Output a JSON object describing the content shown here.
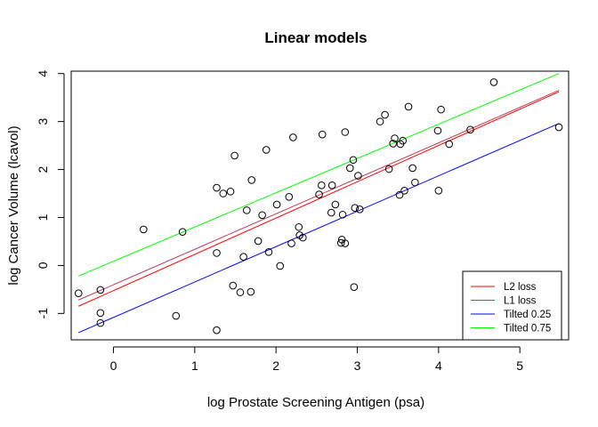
{
  "chart_data": {
    "type": "scatter",
    "title": "Linear models",
    "xlabel": "log Prostate Screening Antigen (psa)",
    "ylabel": "log Cancer Volume (lcavol)",
    "xlim": [
      -0.52,
      5.6
    ],
    "ylim": [
      -1.55,
      4.05
    ],
    "xticks": [
      0,
      1,
      2,
      3,
      4,
      5
    ],
    "yticks": [
      -1,
      0,
      1,
      2,
      3,
      4
    ],
    "xtick_labels": [
      "0",
      "1",
      "2",
      "3",
      "4",
      "5"
    ],
    "ytick_labels": [
      "-1",
      "0",
      "1",
      "2",
      "3",
      "4"
    ],
    "legend_position": "bottom-right",
    "points": [
      {
        "x": -0.43,
        "y": -0.58
      },
      {
        "x": -0.16,
        "y": -0.99
      },
      {
        "x": -0.16,
        "y": -0.51
      },
      {
        "x": -0.16,
        "y": -1.2
      },
      {
        "x": 0.37,
        "y": 0.75
      },
      {
        "x": 0.77,
        "y": -1.05
      },
      {
        "x": 0.85,
        "y": 0.7
      },
      {
        "x": 1.27,
        "y": 1.62
      },
      {
        "x": 1.27,
        "y": 0.26
      },
      {
        "x": 1.27,
        "y": -1.35
      },
      {
        "x": 1.35,
        "y": 1.5
      },
      {
        "x": 1.44,
        "y": 1.54
      },
      {
        "x": 1.47,
        "y": -0.42
      },
      {
        "x": 1.49,
        "y": 2.29
      },
      {
        "x": 1.56,
        "y": -0.56
      },
      {
        "x": 1.6,
        "y": 0.18
      },
      {
        "x": 1.64,
        "y": 1.15
      },
      {
        "x": 1.69,
        "y": -0.55
      },
      {
        "x": 1.7,
        "y": 1.78
      },
      {
        "x": 1.78,
        "y": 0.51
      },
      {
        "x": 1.83,
        "y": 1.05
      },
      {
        "x": 1.88,
        "y": 2.41
      },
      {
        "x": 1.91,
        "y": 0.28
      },
      {
        "x": 2.01,
        "y": 1.27
      },
      {
        "x": 2.05,
        "y": -0.01
      },
      {
        "x": 2.16,
        "y": 1.43
      },
      {
        "x": 2.19,
        "y": 0.46
      },
      {
        "x": 2.21,
        "y": 2.67
      },
      {
        "x": 2.28,
        "y": 0.8
      },
      {
        "x": 2.29,
        "y": 0.63
      },
      {
        "x": 2.33,
        "y": 0.58
      },
      {
        "x": 2.53,
        "y": 1.48
      },
      {
        "x": 2.56,
        "y": 1.67
      },
      {
        "x": 2.57,
        "y": 2.73
      },
      {
        "x": 2.68,
        "y": 1.1
      },
      {
        "x": 2.69,
        "y": 1.67
      },
      {
        "x": 2.73,
        "y": 1.27
      },
      {
        "x": 2.8,
        "y": 0.47
      },
      {
        "x": 2.81,
        "y": 0.54
      },
      {
        "x": 2.82,
        "y": 1.06
      },
      {
        "x": 2.85,
        "y": 0.46
      },
      {
        "x": 2.85,
        "y": 2.78
      },
      {
        "x": 2.91,
        "y": 2.03
      },
      {
        "x": 2.95,
        "y": 2.2
      },
      {
        "x": 2.96,
        "y": -0.45
      },
      {
        "x": 2.97,
        "y": 1.2
      },
      {
        "x": 3.01,
        "y": 1.87
      },
      {
        "x": 3.03,
        "y": 1.17
      },
      {
        "x": 3.28,
        "y": 3.0
      },
      {
        "x": 3.34,
        "y": 3.14
      },
      {
        "x": 3.39,
        "y": 2.01
      },
      {
        "x": 3.44,
        "y": 2.54
      },
      {
        "x": 3.46,
        "y": 2.65
      },
      {
        "x": 3.52,
        "y": 1.47
      },
      {
        "x": 3.53,
        "y": 2.53
      },
      {
        "x": 3.56,
        "y": 2.6
      },
      {
        "x": 3.58,
        "y": 1.56
      },
      {
        "x": 3.63,
        "y": 3.31
      },
      {
        "x": 3.68,
        "y": 2.03
      },
      {
        "x": 3.71,
        "y": 1.73
      },
      {
        "x": 3.99,
        "y": 2.81
      },
      {
        "x": 4.0,
        "y": 1.56
      },
      {
        "x": 4.03,
        "y": 3.25
      },
      {
        "x": 4.13,
        "y": 2.53
      },
      {
        "x": 4.39,
        "y": 2.83
      },
      {
        "x": 4.68,
        "y": 3.82
      },
      {
        "x": 5.48,
        "y": 2.88
      }
    ],
    "series": [
      {
        "name": "L2 loss",
        "color": "#ff0000",
        "x": [
          -0.43,
          5.48
        ],
        "y": [
          -0.85,
          3.62
        ]
      },
      {
        "name": "L1 loss",
        "color": "#b83d5a",
        "x": [
          -0.43,
          5.48
        ],
        "y": [
          -0.72,
          3.65
        ]
      },
      {
        "name": "Tilted 0.25",
        "color": "#0000ff",
        "x": [
          -0.43,
          5.48
        ],
        "y": [
          -1.4,
          2.96
        ]
      },
      {
        "name": "Tilted 0.75",
        "color": "#00ff00",
        "x": [
          -0.43,
          5.48
        ],
        "y": [
          -0.22,
          4.0
        ]
      }
    ]
  }
}
